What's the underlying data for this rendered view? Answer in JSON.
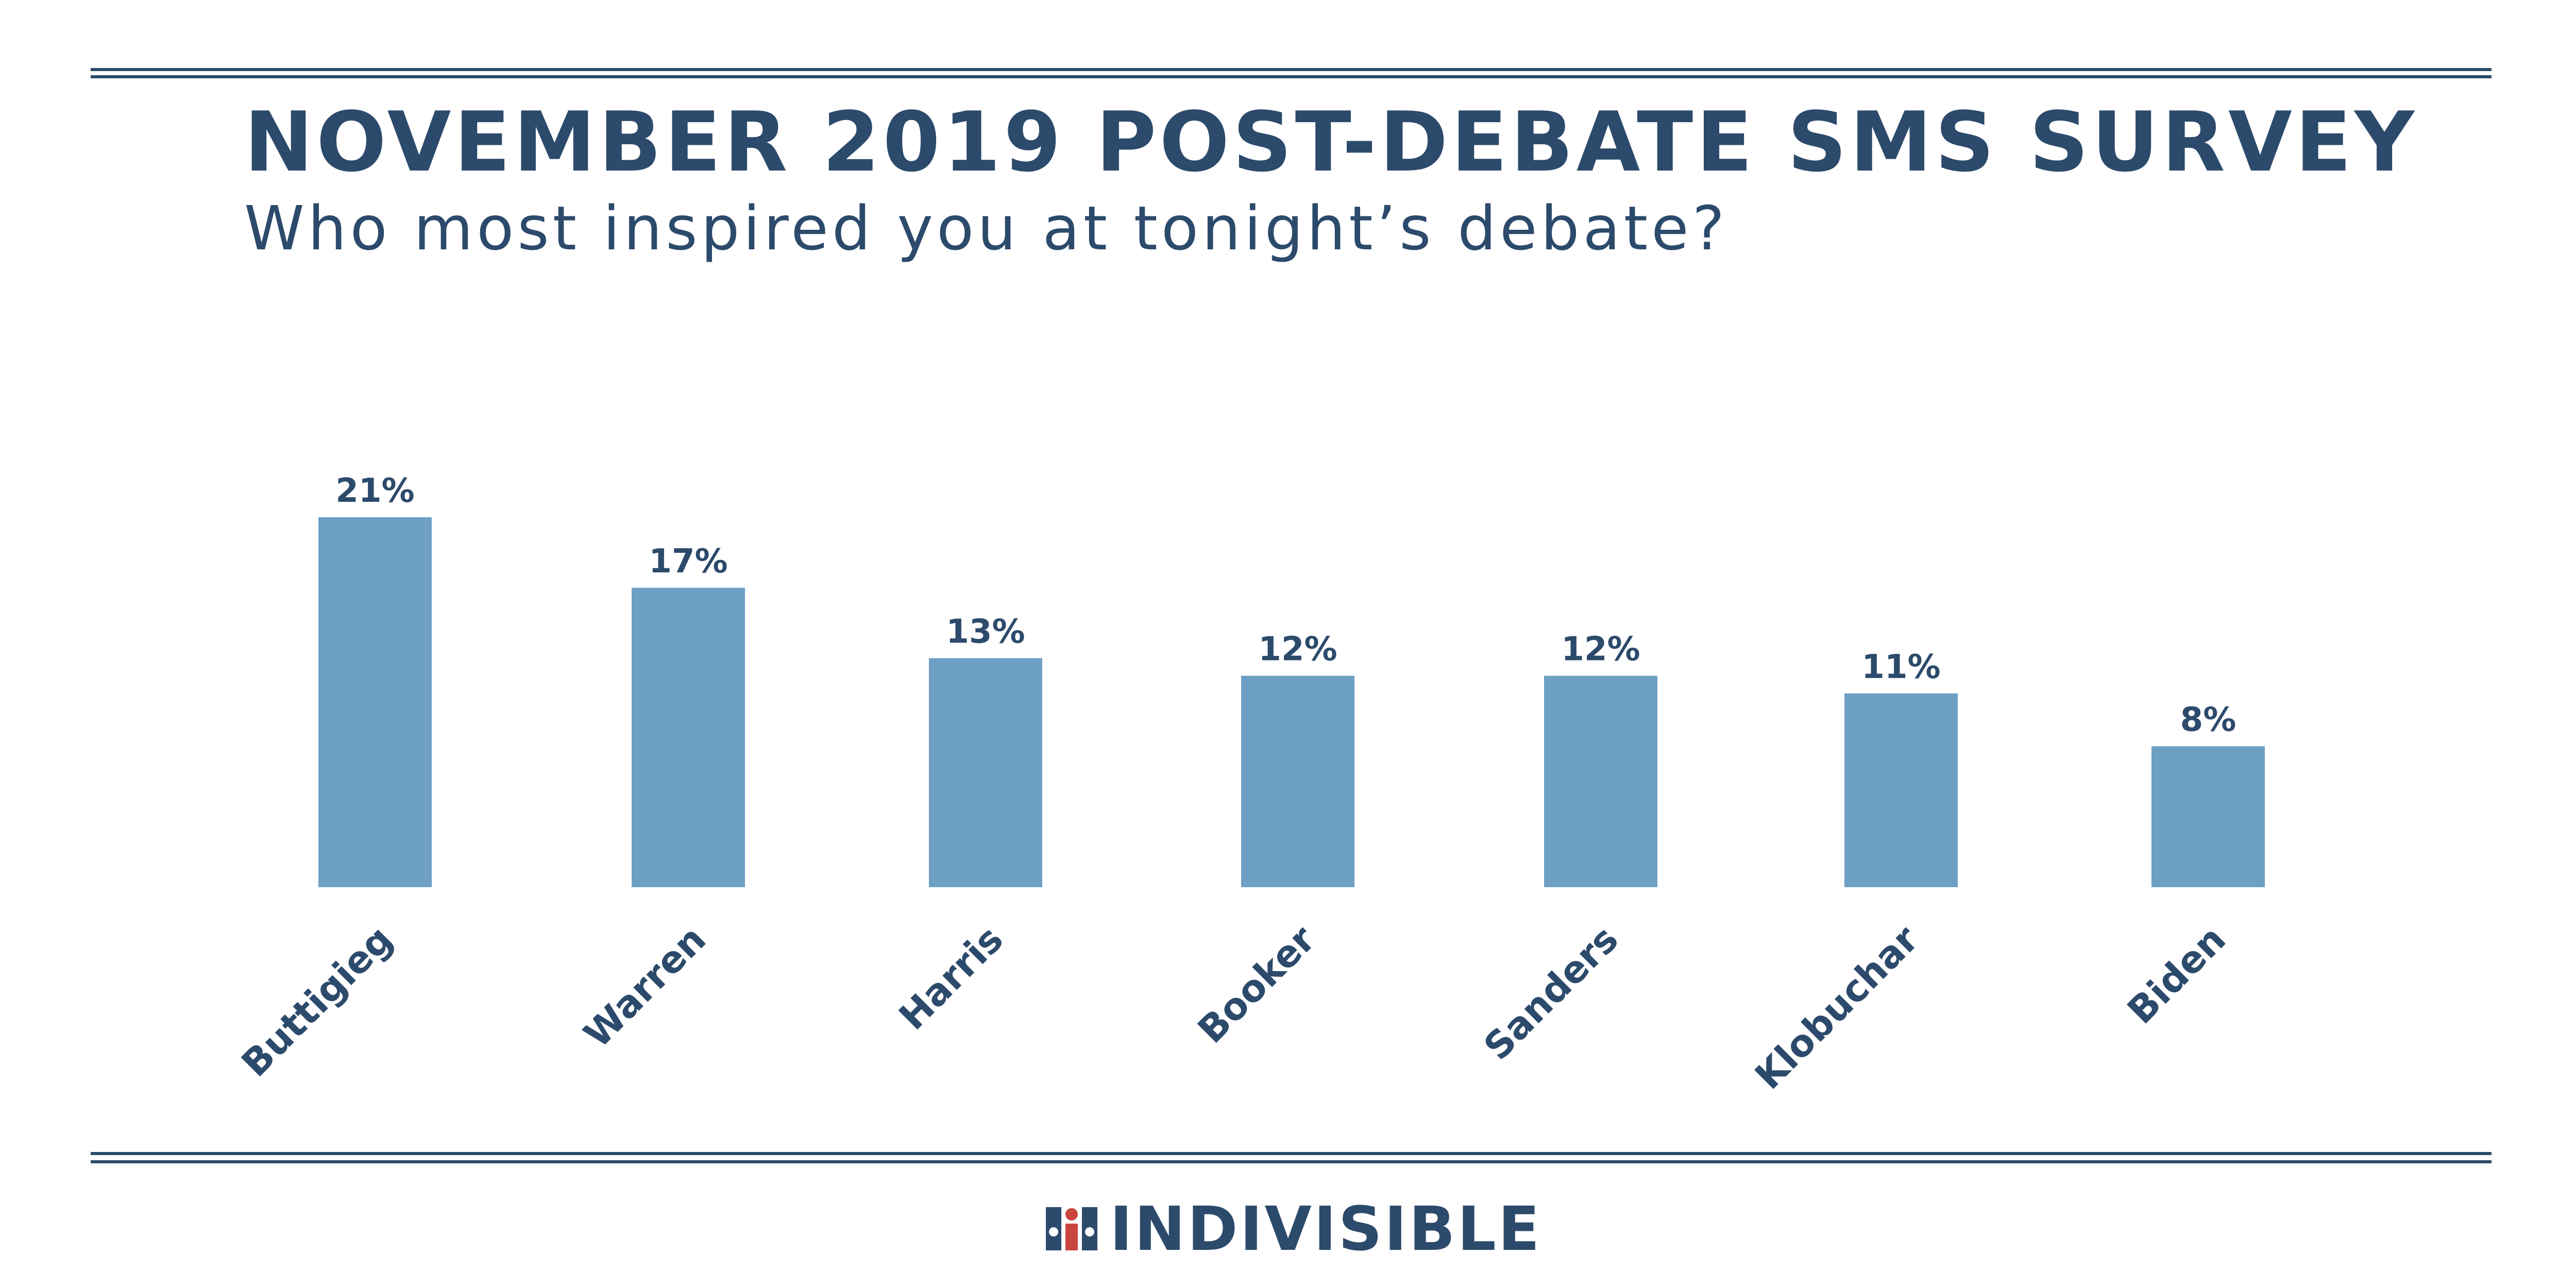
{
  "chart_data": {
    "type": "bar",
    "title": "NOVEMBER 2019 POST-DEBATE SMS SURVEY",
    "subtitle": "Who most inspired you at tonight’s debate?",
    "categories": [
      "Buttigieg",
      "Warren",
      "Harris",
      "Booker",
      "Sanders",
      "Klobuchar",
      "Biden"
    ],
    "values": [
      21,
      17,
      13,
      12,
      12,
      11,
      8
    ],
    "value_labels": [
      "21%",
      "17%",
      "13%",
      "12%",
      "12%",
      "11%",
      "8%"
    ],
    "ylim": [
      0,
      21
    ],
    "grid": false,
    "legend": "none",
    "bar_color": "#6e9fc5",
    "text_color": "#2c4a6b"
  },
  "footer": {
    "brand": "INDIVISIBLE",
    "logo_icon": "indivisible-people-icon"
  }
}
